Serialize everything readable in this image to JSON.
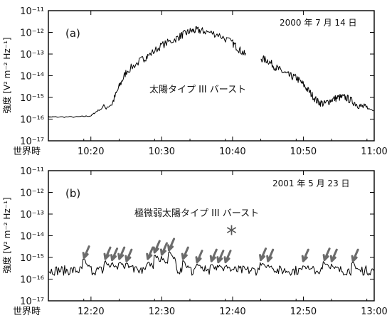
{
  "chart_data": [
    {
      "type": "line",
      "panel": "(a)",
      "date": "2000 年 7 月 14 日",
      "annotation": "太陽タイプ III バースト",
      "ylabel": "強度 [V² m⁻² Hz⁻¹]",
      "xlabel": "世界時",
      "x_tick_labels": [
        "10:20",
        "10:30",
        "10:40",
        "10:50",
        "11:00"
      ],
      "xlim_minutes": [
        10.2333,
        11.0
      ],
      "ylim_log10": [
        -17,
        -11
      ],
      "series": [
        {
          "segments": [
            {
              "x": [
                10.2333,
                10.25,
                10.3,
                10.333,
                10.35,
                10.383,
                10.4,
                10.417,
                10.45,
                10.467,
                10.5,
                10.533,
                10.55,
                10.567,
                10.583,
                10.6,
                10.633,
                10.667,
                10.683,
                10.7
              ],
              "y": [
                -15.9,
                -15.9,
                -15.9,
                -15.85,
                -15.6,
                -15.3,
                -14.5,
                -13.8,
                -13.3,
                -13.1,
                -12.6,
                -12.3,
                -12.1,
                -11.95,
                -11.9,
                -11.95,
                -12.1,
                -12.5,
                -12.8,
                -13.1
              ]
            },
            {
              "x": [
                10.733,
                10.75,
                10.767,
                10.783,
                10.8,
                10.817,
                10.833,
                10.85,
                10.867,
                10.883,
                10.9,
                10.917,
                10.933,
                10.95,
                10.967,
                10.983,
                11.0
              ],
              "y": [
                -13.2,
                -13.3,
                -13.6,
                -13.8,
                -14.0,
                -14.1,
                -14.4,
                -14.8,
                -15.2,
                -15.3,
                -15.1,
                -15.0,
                -15.0,
                -15.2,
                -15.4,
                -15.5,
                -15.6
              ]
            }
          ]
        }
      ]
    },
    {
      "type": "line",
      "panel": "(b)",
      "date": "2001 年 5 月 23 日",
      "annotation": "極微弱太陽タイプ III バースト",
      "marker": "*",
      "ylabel": "強度 [V² m⁻² Hz⁻¹]",
      "xlabel": "世界時",
      "x_tick_labels": [
        "12:20",
        "12:30",
        "12:40",
        "12:50",
        "13:00"
      ],
      "xlim_minutes": [
        12.233,
        13.0
      ],
      "ylim_log10": [
        -17,
        -11
      ],
      "baseline_log10": -15.6,
      "bursts": [
        {
          "t": 12.317,
          "peak": -15.15
        },
        {
          "t": 12.367,
          "peak": -15.2
        },
        {
          "t": 12.383,
          "peak": -15.25
        },
        {
          "t": 12.4,
          "peak": -15.2
        },
        {
          "t": 12.417,
          "peak": -15.3
        },
        {
          "t": 12.467,
          "peak": -15.2
        },
        {
          "t": 12.483,
          "peak": -14.9
        },
        {
          "t": 12.5,
          "peak": -15.0
        },
        {
          "t": 12.517,
          "peak": -14.8
        },
        {
          "t": 12.55,
          "peak": -15.2
        },
        {
          "t": 12.583,
          "peak": -15.35
        },
        {
          "t": 12.617,
          "peak": -15.3
        },
        {
          "t": 12.633,
          "peak": -15.35
        },
        {
          "t": 12.65,
          "peak": -15.35
        },
        {
          "t": 12.733,
          "peak": -15.25
        },
        {
          "t": 12.75,
          "peak": -15.3
        },
        {
          "t": 12.833,
          "peak": -15.3
        },
        {
          "t": 12.883,
          "peak": -15.25
        },
        {
          "t": 12.9,
          "peak": -15.3
        },
        {
          "t": 12.95,
          "peak": -15.3
        }
      ]
    }
  ],
  "y_tick_labels": [
    "10⁻¹¹",
    "10⁻¹²",
    "10⁻¹³",
    "10⁻¹⁴",
    "10⁻¹⁵",
    "10⁻¹⁶",
    "10⁻¹⁷"
  ],
  "y_tick_values": [
    -11,
    -12,
    -13,
    -14,
    -15,
    -16,
    -17
  ],
  "colors": {
    "line": "#000000",
    "arrow": "#6b6b6b",
    "axis": "#000000"
  }
}
